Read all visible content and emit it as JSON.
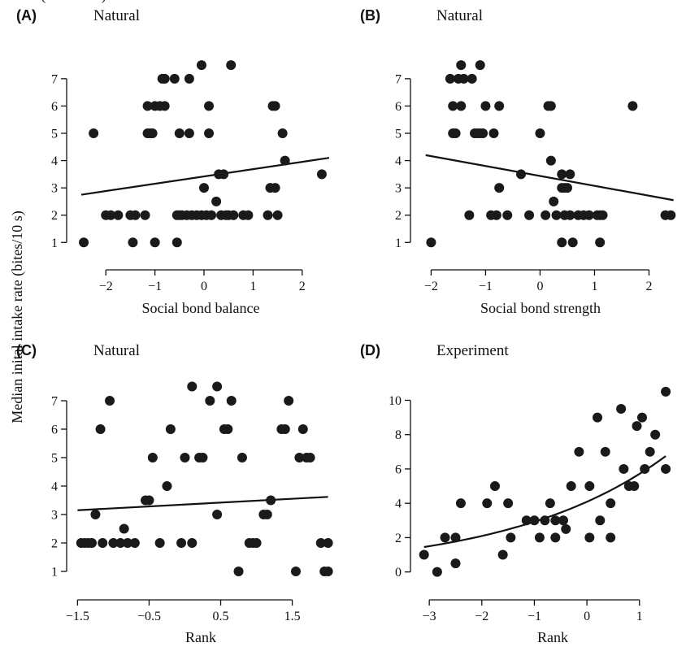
{
  "chart_data": [
    {
      "panel": "(A)",
      "title": "Natural",
      "type": "scatter",
      "xlabel": "Social bond balance",
      "ylabel": "Median inital intake rate (bites/10 s)",
      "xlim": [
        -2.6,
        2.6
      ],
      "ylim": [
        0.8,
        7.8
      ],
      "xticks": [
        -2,
        -1,
        0,
        1,
        2
      ],
      "xtick_labels": [
        "−2",
        "−1",
        "0",
        "1",
        "2"
      ],
      "yticks": [
        1,
        2,
        3,
        4,
        5,
        6,
        7
      ],
      "ytick_labels": [
        "1",
        "2",
        "3",
        "4",
        "5",
        "6",
        "7"
      ],
      "grid": false,
      "points": [
        [
          -2.45,
          1
        ],
        [
          -2.25,
          5
        ],
        [
          -2.0,
          2
        ],
        [
          -1.9,
          2
        ],
        [
          -1.75,
          2
        ],
        [
          -1.5,
          2
        ],
        [
          -1.45,
          1
        ],
        [
          -1.4,
          2
        ],
        [
          -1.2,
          2
        ],
        [
          -1.15,
          6
        ],
        [
          -1.15,
          5
        ],
        [
          -1.1,
          5
        ],
        [
          -1.05,
          5
        ],
        [
          -1.0,
          1
        ],
        [
          -1.0,
          6
        ],
        [
          -0.9,
          6
        ],
        [
          -0.85,
          7
        ],
        [
          -0.8,
          7
        ],
        [
          -0.8,
          6
        ],
        [
          -0.6,
          7
        ],
        [
          -0.55,
          2
        ],
        [
          -0.55,
          1
        ],
        [
          -0.5,
          2
        ],
        [
          -0.5,
          5
        ],
        [
          -0.45,
          2
        ],
        [
          -0.35,
          2
        ],
        [
          -0.3,
          7
        ],
        [
          -0.3,
          5
        ],
        [
          -0.25,
          2
        ],
        [
          -0.15,
          2
        ],
        [
          -0.05,
          7.5
        ],
        [
          -0.05,
          2
        ],
        [
          0.0,
          3
        ],
        [
          0.05,
          2
        ],
        [
          0.1,
          5
        ],
        [
          0.1,
          6
        ],
        [
          0.15,
          2
        ],
        [
          0.25,
          2.5
        ],
        [
          0.3,
          3.5
        ],
        [
          0.35,
          2
        ],
        [
          0.4,
          3.5
        ],
        [
          0.45,
          2
        ],
        [
          0.5,
          2
        ],
        [
          0.55,
          7.5
        ],
        [
          0.6,
          2
        ],
        [
          0.8,
          2
        ],
        [
          0.9,
          2
        ],
        [
          1.3,
          2
        ],
        [
          1.35,
          3
        ],
        [
          1.4,
          6
        ],
        [
          1.45,
          6
        ],
        [
          1.45,
          3
        ],
        [
          1.5,
          2
        ],
        [
          1.6,
          5
        ],
        [
          1.65,
          4
        ],
        [
          2.4,
          3.5
        ]
      ],
      "fit": {
        "x": [
          -2.5,
          2.55
        ],
        "y": [
          2.75,
          4.1
        ]
      }
    },
    {
      "panel": "(B)",
      "title": "Natural",
      "type": "scatter",
      "xlabel": "Social bond strength",
      "ylabel": "",
      "xlim": [
        -2.2,
        2.5
      ],
      "ylim": [
        0.8,
        7.8
      ],
      "xticks": [
        -2,
        -1,
        0,
        1,
        2
      ],
      "xtick_labels": [
        "−2",
        "−1",
        "0",
        "1",
        "2"
      ],
      "yticks": [
        1,
        2,
        3,
        4,
        5,
        6,
        7
      ],
      "ytick_labels": [
        "1",
        "2",
        "3",
        "4",
        "5",
        "6",
        "7"
      ],
      "grid": false,
      "points": [
        [
          -2.0,
          1
        ],
        [
          -1.65,
          7
        ],
        [
          -1.6,
          6
        ],
        [
          -1.6,
          5
        ],
        [
          -1.55,
          5
        ],
        [
          -1.5,
          7
        ],
        [
          -1.45,
          7.5
        ],
        [
          -1.45,
          6
        ],
        [
          -1.4,
          7
        ],
        [
          -1.3,
          2
        ],
        [
          -1.25,
          7
        ],
        [
          -1.2,
          5
        ],
        [
          -1.15,
          5
        ],
        [
          -1.1,
          7.5
        ],
        [
          -1.1,
          5
        ],
        [
          -1.05,
          5
        ],
        [
          -1.0,
          6
        ],
        [
          -0.9,
          2
        ],
        [
          -0.85,
          5
        ],
        [
          -0.8,
          2
        ],
        [
          -0.75,
          6
        ],
        [
          -0.75,
          3
        ],
        [
          -0.6,
          2
        ],
        [
          -0.35,
          3.5
        ],
        [
          -0.2,
          2
        ],
        [
          0.0,
          5
        ],
        [
          0.1,
          2
        ],
        [
          0.15,
          6
        ],
        [
          0.2,
          6
        ],
        [
          0.2,
          4
        ],
        [
          0.25,
          2.5
        ],
        [
          0.3,
          2
        ],
        [
          0.4,
          3.5
        ],
        [
          0.4,
          3
        ],
        [
          0.45,
          3
        ],
        [
          0.4,
          1
        ],
        [
          0.45,
          2
        ],
        [
          0.5,
          3
        ],
        [
          0.55,
          3.5
        ],
        [
          0.55,
          2
        ],
        [
          0.6,
          1
        ],
        [
          0.7,
          2
        ],
        [
          0.8,
          2
        ],
        [
          0.9,
          2
        ],
        [
          1.05,
          2
        ],
        [
          1.1,
          1
        ],
        [
          1.1,
          2
        ],
        [
          1.15,
          2
        ],
        [
          1.7,
          6
        ],
        [
          2.3,
          2
        ],
        [
          2.4,
          2
        ]
      ],
      "fit": {
        "x": [
          -2.1,
          2.45
        ],
        "y": [
          4.2,
          2.55
        ]
      }
    },
    {
      "panel": "(C)",
      "title": "Natural",
      "type": "scatter",
      "xlabel": "Rank",
      "ylabel": "Median inital intake rate (bites/10 s)",
      "xlim": [
        -1.55,
        2.05
      ],
      "ylim": [
        0.8,
        7.8
      ],
      "xticks": [
        -1.5,
        -0.5,
        0.5,
        1.5
      ],
      "xtick_labels": [
        "−1.5",
        "−0.5",
        "0.5",
        "1.5"
      ],
      "yticks": [
        1,
        2,
        3,
        4,
        5,
        6,
        7
      ],
      "ytick_labels": [
        "1",
        "2",
        "3",
        "4",
        "5",
        "6",
        "7"
      ],
      "grid": false,
      "points": [
        [
          -1.45,
          2
        ],
        [
          -1.4,
          2
        ],
        [
          -1.35,
          2
        ],
        [
          -1.3,
          2
        ],
        [
          -1.25,
          3
        ],
        [
          -1.18,
          6
        ],
        [
          -1.15,
          2
        ],
        [
          -1.05,
          7
        ],
        [
          -1.0,
          2
        ],
        [
          -0.9,
          2
        ],
        [
          -0.85,
          2.5
        ],
        [
          -0.8,
          2
        ],
        [
          -0.7,
          2
        ],
        [
          -0.55,
          3.5
        ],
        [
          -0.5,
          3.5
        ],
        [
          -0.45,
          5
        ],
        [
          -0.35,
          2
        ],
        [
          -0.25,
          4
        ],
        [
          -0.2,
          6
        ],
        [
          -0.05,
          2
        ],
        [
          0.0,
          5
        ],
        [
          0.1,
          7.5
        ],
        [
          0.1,
          2
        ],
        [
          0.2,
          5
        ],
        [
          0.25,
          5
        ],
        [
          0.35,
          7
        ],
        [
          0.45,
          7.5
        ],
        [
          0.45,
          3
        ],
        [
          0.55,
          6
        ],
        [
          0.6,
          6
        ],
        [
          0.65,
          7
        ],
        [
          0.75,
          1
        ],
        [
          0.8,
          5
        ],
        [
          0.9,
          2
        ],
        [
          0.95,
          2
        ],
        [
          1.0,
          2
        ],
        [
          1.1,
          3
        ],
        [
          1.15,
          3
        ],
        [
          1.2,
          3.5
        ],
        [
          1.35,
          6
        ],
        [
          1.4,
          6
        ],
        [
          1.45,
          7
        ],
        [
          1.55,
          1
        ],
        [
          1.6,
          5
        ],
        [
          1.65,
          6
        ],
        [
          1.7,
          5
        ],
        [
          1.75,
          5
        ],
        [
          1.9,
          2
        ],
        [
          1.95,
          1
        ],
        [
          2.0,
          2
        ],
        [
          2.0,
          1
        ]
      ],
      "fit": {
        "x": [
          -1.5,
          2.0
        ],
        "y": [
          3.15,
          3.62
        ]
      }
    },
    {
      "panel": "(D)",
      "title": "Experiment",
      "type": "scatter",
      "xlabel": "Rank",
      "ylabel": "",
      "xlim": [
        -3.25,
        1.7
      ],
      "ylim": [
        -0.3,
        11.3
      ],
      "xticks": [
        -3,
        -2,
        -1,
        0,
        1
      ],
      "xtick_labels": [
        "−3",
        "−2",
        "−1",
        "0",
        "1"
      ],
      "yticks": [
        0,
        2,
        4,
        6,
        8,
        10
      ],
      "ytick_labels": [
        "0",
        "2",
        "4",
        "6",
        "8",
        "10"
      ],
      "grid": false,
      "points": [
        [
          -3.1,
          1
        ],
        [
          -2.85,
          0
        ],
        [
          -2.7,
          2
        ],
        [
          -2.5,
          2
        ],
        [
          -2.5,
          0.5
        ],
        [
          -2.4,
          4
        ],
        [
          -1.9,
          4
        ],
        [
          -1.75,
          5
        ],
        [
          -1.6,
          1
        ],
        [
          -1.5,
          4
        ],
        [
          -1.45,
          2
        ],
        [
          -1.15,
          3
        ],
        [
          -1.0,
          3
        ],
        [
          -0.9,
          2
        ],
        [
          -0.8,
          3
        ],
        [
          -0.7,
          4
        ],
        [
          -0.6,
          3
        ],
        [
          -0.6,
          2
        ],
        [
          -0.45,
          3
        ],
        [
          -0.4,
          2.5
        ],
        [
          -0.3,
          5
        ],
        [
          -0.15,
          7
        ],
        [
          0.05,
          5
        ],
        [
          0.05,
          2
        ],
        [
          0.2,
          9
        ],
        [
          0.25,
          3
        ],
        [
          0.35,
          7
        ],
        [
          0.45,
          2
        ],
        [
          0.45,
          4
        ],
        [
          0.65,
          9.5
        ],
        [
          0.7,
          6
        ],
        [
          0.8,
          5
        ],
        [
          0.9,
          5
        ],
        [
          0.95,
          8.5
        ],
        [
          1.05,
          9
        ],
        [
          1.1,
          6
        ],
        [
          1.2,
          7
        ],
        [
          1.3,
          8
        ],
        [
          1.5,
          10.5
        ],
        [
          1.5,
          6
        ]
      ],
      "fit_type": "exponential",
      "fit": {
        "x": [
          -3.1,
          1.5
        ],
        "y": [
          1.45,
          6.75
        ]
      }
    }
  ]
}
